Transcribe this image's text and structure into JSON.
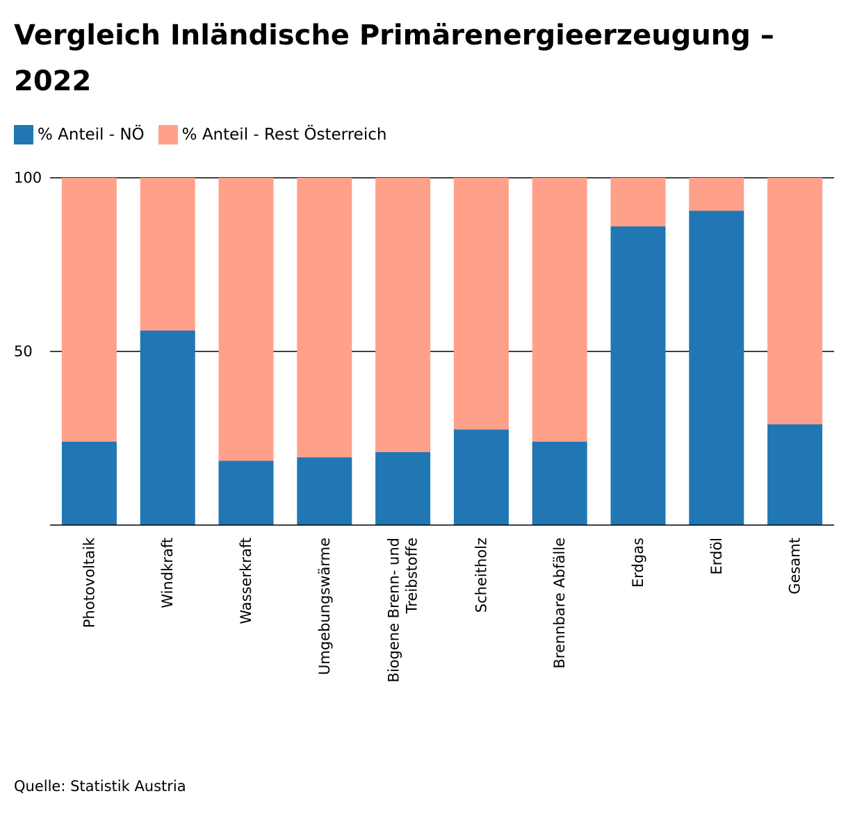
{
  "chart_data": {
    "type": "bar",
    "stacked": true,
    "title": "Vergleich Inländische Primärenergieerzeugung – 2022",
    "source": "Quelle: Statistik Austria",
    "categories": [
      [
        "Photovoltaik"
      ],
      [
        "Windkraft"
      ],
      [
        "Wasserkraft"
      ],
      [
        "Umgebungswärme"
      ],
      [
        "Biogene Brenn- und",
        "Treibstoffe"
      ],
      [
        "Scheitholz"
      ],
      [
        "Brennbare Abfälle"
      ],
      [
        "Erdgas"
      ],
      [
        "Erdöl"
      ],
      [
        "Gesamt"
      ]
    ],
    "series": [
      {
        "name": "% Anteil - NÖ",
        "color": "#2077b4",
        "values": [
          24,
          56,
          18.5,
          19.5,
          21,
          27.5,
          24,
          86,
          90.5,
          29
        ]
      },
      {
        "name": "% Anteil - Rest Österreich",
        "color": "#ffa08a",
        "values": [
          76,
          44,
          81.5,
          80.5,
          79,
          72.5,
          76,
          14,
          9.5,
          71
        ]
      }
    ],
    "y_ticks": [
      "50",
      "100"
    ],
    "ylim": [
      0,
      100
    ],
    "grid": true,
    "legend_position": "top-left"
  }
}
